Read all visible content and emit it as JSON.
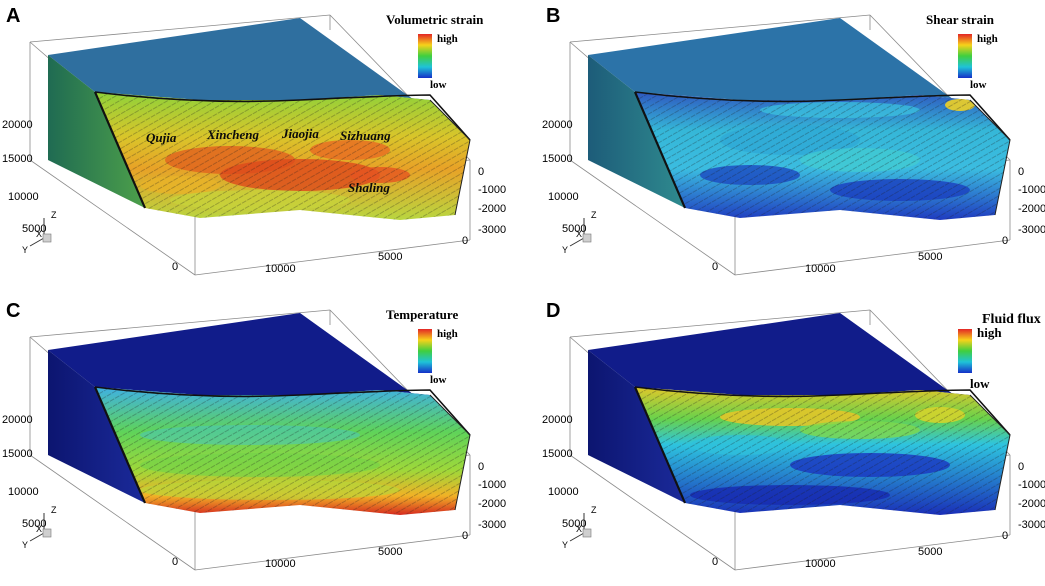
{
  "panels": [
    {
      "letter": "A",
      "legend": {
        "title": "Volumetric strain",
        "high": "high",
        "low": "low"
      },
      "places": [
        "Qujia",
        "Xincheng",
        "Jiaojia",
        "Sizhuang",
        "Shaling"
      ],
      "scheme": "vol"
    },
    {
      "letter": "B",
      "legend": {
        "title": "Shear strain",
        "high": "high",
        "low": "low"
      },
      "places": [],
      "scheme": "shear"
    },
    {
      "letter": "C",
      "legend": {
        "title": "Temperature",
        "high": "high",
        "low": "low"
      },
      "places": [],
      "scheme": "temp"
    },
    {
      "letter": "D",
      "legend": {
        "title": "Fluid flux",
        "high": "high",
        "low": "low"
      },
      "places": [],
      "scheme": "flux"
    }
  ],
  "axes": {
    "y_ticks": [
      "20000",
      "15000",
      "10000",
      "5000",
      "0"
    ],
    "x_ticks": [
      "10000",
      "5000",
      "0"
    ],
    "z_ticks": [
      "0",
      "-1000",
      "-2000",
      "-3000"
    ],
    "orientation_labels": {
      "z": "Z",
      "x": "X",
      "y": "Y"
    }
  },
  "colors": {
    "top_blue_A": "#2f6f9f",
    "top_blue_B": "#2c73a8",
    "top_navy": "#111c8a",
    "legend_gradient": [
      "#e32626",
      "#f7d21a",
      "#3fcf3f",
      "#1fc3d8",
      "#1530c8"
    ]
  }
}
